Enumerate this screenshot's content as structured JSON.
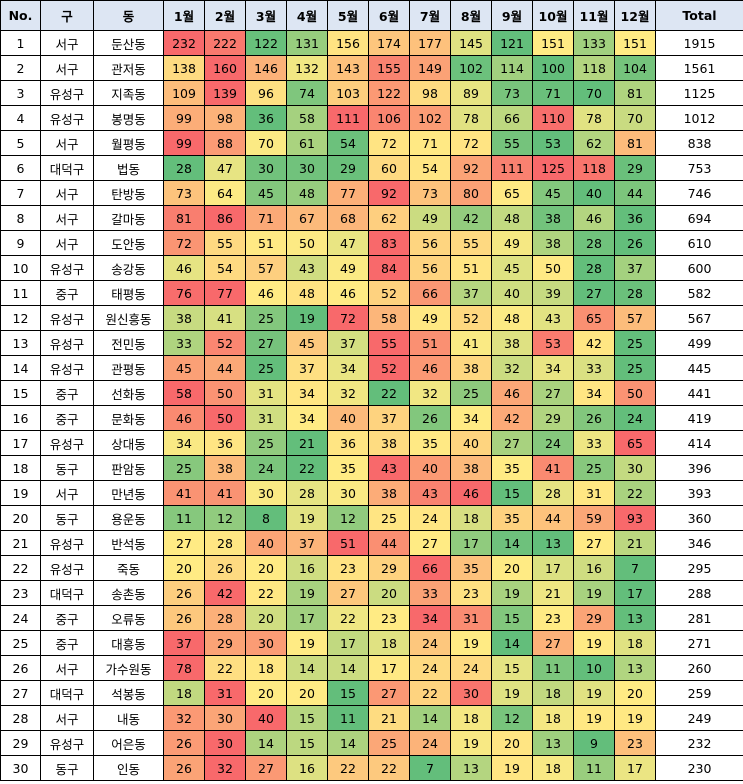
{
  "table": {
    "header": [
      "No.",
      "구",
      "동",
      "1월",
      "2월",
      "3월",
      "4월",
      "5월",
      "6월",
      "7월",
      "8월",
      "9월",
      "10월",
      "11월",
      "12월",
      "Total"
    ],
    "color_scale": {
      "low": "#63be7b",
      "mid": "#ffeb84",
      "high": "#f8696b"
    },
    "rows": [
      [
        1,
        "서구",
        "둔산동",
        232,
        222,
        122,
        131,
        156,
        174,
        177,
        145,
        121,
        151,
        133,
        151,
        1915
      ],
      [
        2,
        "서구",
        "관저동",
        138,
        160,
        146,
        132,
        143,
        155,
        149,
        102,
        114,
        100,
        118,
        104,
        1561
      ],
      [
        3,
        "유성구",
        "지족동",
        109,
        139,
        96,
        74,
        103,
        122,
        98,
        89,
        73,
        71,
        70,
        81,
        1125
      ],
      [
        4,
        "유성구",
        "봉명동",
        99,
        98,
        36,
        58,
        111,
        106,
        102,
        78,
        66,
        110,
        78,
        70,
        1012
      ],
      [
        5,
        "서구",
        "월평동",
        99,
        88,
        70,
        61,
        54,
        72,
        71,
        72,
        55,
        53,
        62,
        81,
        838
      ],
      [
        6,
        "대덕구",
        "법동",
        28,
        47,
        30,
        30,
        29,
        60,
        54,
        92,
        111,
        125,
        118,
        29,
        753
      ],
      [
        7,
        "서구",
        "탄방동",
        73,
        64,
        45,
        48,
        77,
        92,
        73,
        80,
        65,
        45,
        40,
        44,
        746
      ],
      [
        8,
        "서구",
        "갈마동",
        81,
        86,
        71,
        67,
        68,
        62,
        49,
        42,
        48,
        38,
        46,
        36,
        694
      ],
      [
        9,
        "서구",
        "도안동",
        72,
        55,
        51,
        50,
        47,
        83,
        56,
        55,
        49,
        38,
        28,
        26,
        610
      ],
      [
        10,
        "유성구",
        "송강동",
        46,
        54,
        57,
        43,
        49,
        84,
        56,
        51,
        45,
        50,
        28,
        37,
        600
      ],
      [
        11,
        "중구",
        "태평동",
        76,
        77,
        46,
        48,
        46,
        52,
        66,
        37,
        40,
        39,
        27,
        28,
        582
      ],
      [
        12,
        "유성구",
        "원신흥동",
        38,
        41,
        25,
        19,
        72,
        58,
        49,
        52,
        48,
        43,
        65,
        57,
        567
      ],
      [
        13,
        "유성구",
        "전민동",
        33,
        52,
        27,
        45,
        37,
        55,
        51,
        41,
        38,
        53,
        42,
        25,
        499
      ],
      [
        14,
        "유성구",
        "관평동",
        45,
        44,
        25,
        37,
        34,
        52,
        46,
        38,
        32,
        34,
        33,
        25,
        445
      ],
      [
        15,
        "중구",
        "선화동",
        58,
        50,
        31,
        34,
        32,
        22,
        32,
        25,
        46,
        27,
        34,
        50,
        441
      ],
      [
        16,
        "중구",
        "문화동",
        46,
        50,
        31,
        34,
        40,
        37,
        26,
        34,
        42,
        29,
        26,
        24,
        419
      ],
      [
        17,
        "유성구",
        "상대동",
        34,
        36,
        25,
        21,
        36,
        38,
        35,
        40,
        27,
        24,
        33,
        65,
        414
      ],
      [
        18,
        "동구",
        "판암동",
        25,
        38,
        24,
        22,
        35,
        43,
        40,
        38,
        35,
        41,
        25,
        30,
        396
      ],
      [
        19,
        "서구",
        "만년동",
        41,
        41,
        30,
        28,
        30,
        38,
        43,
        46,
        15,
        28,
        31,
        22,
        393
      ],
      [
        20,
        "동구",
        "용운동",
        11,
        12,
        8,
        19,
        12,
        25,
        24,
        18,
        35,
        44,
        59,
        93,
        360
      ],
      [
        21,
        "유성구",
        "반석동",
        27,
        28,
        40,
        37,
        51,
        44,
        27,
        17,
        14,
        13,
        27,
        21,
        346
      ],
      [
        22,
        "유성구",
        "죽동",
        20,
        26,
        20,
        16,
        23,
        29,
        66,
        35,
        20,
        17,
        16,
        7,
        295
      ],
      [
        23,
        "대덕구",
        "송촌동",
        26,
        42,
        22,
        19,
        27,
        20,
        33,
        23,
        19,
        21,
        19,
        17,
        288
      ],
      [
        24,
        "중구",
        "오류동",
        26,
        28,
        20,
        17,
        22,
        23,
        34,
        31,
        15,
        23,
        29,
        13,
        281
      ],
      [
        25,
        "중구",
        "대흥동",
        37,
        29,
        30,
        19,
        17,
        18,
        24,
        19,
        14,
        27,
        19,
        18,
        271
      ],
      [
        26,
        "서구",
        "가수원동",
        78,
        22,
        18,
        14,
        14,
        17,
        24,
        24,
        15,
        11,
        10,
        13,
        260
      ],
      [
        27,
        "대덕구",
        "석봉동",
        18,
        31,
        20,
        20,
        15,
        27,
        22,
        30,
        19,
        18,
        19,
        20,
        259
      ],
      [
        28,
        "서구",
        "내동",
        32,
        30,
        40,
        15,
        11,
        21,
        14,
        18,
        12,
        18,
        19,
        19,
        249
      ],
      [
        29,
        "유성구",
        "어은동",
        26,
        30,
        14,
        15,
        14,
        25,
        24,
        19,
        20,
        13,
        9,
        23,
        232
      ],
      [
        30,
        "동구",
        "인동",
        26,
        32,
        27,
        16,
        22,
        22,
        7,
        13,
        19,
        18,
        11,
        17,
        230
      ]
    ]
  }
}
